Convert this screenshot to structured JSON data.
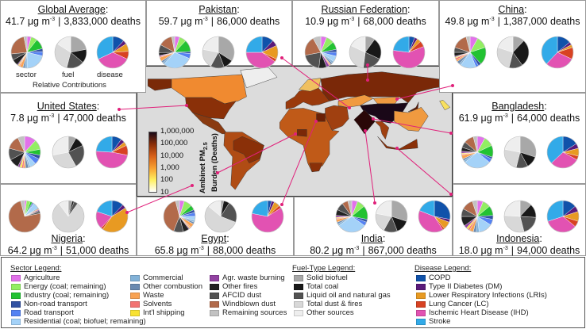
{
  "units": {
    "conc": "μg m",
    "exp": "-3",
    "sep": "|",
    "deaths": "deaths"
  },
  "global_labels": {
    "sector": "sector",
    "fuel": "fuel",
    "disease": "disease",
    "caption": "Relative Contributions"
  },
  "panels": [
    {
      "id": "global",
      "name": "Global Average",
      "conc": "41.7",
      "deaths": "3,833,000",
      "sector": [
        4,
        6,
        10,
        3,
        4,
        20,
        2,
        2,
        3,
        1,
        1,
        1,
        6,
        6,
        22,
        3
      ],
      "fuel": [
        22,
        14,
        18,
        30,
        16
      ],
      "disease": [
        12,
        4,
        8,
        8,
        36,
        32
      ]
    },
    {
      "id": "pakistan",
      "name": "Pakistan",
      "conc": "59.7",
      "deaths": "86,000",
      "sector": [
        5,
        7,
        12,
        2,
        5,
        30,
        2,
        2,
        4,
        1,
        0,
        1,
        3,
        8,
        14,
        3
      ],
      "fuel": [
        34,
        10,
        14,
        20,
        22
      ],
      "disease": [
        12,
        6,
        14,
        3,
        40,
        25
      ]
    },
    {
      "id": "russia",
      "name": "Russian Federation",
      "conc": "10.9",
      "deaths": "68,000",
      "sector": [
        6,
        8,
        8,
        3,
        4,
        6,
        2,
        2,
        1,
        1,
        0,
        3,
        8,
        20,
        20,
        8
      ],
      "fuel": [
        10,
        22,
        20,
        30,
        18
      ],
      "disease": [
        6,
        3,
        4,
        6,
        58,
        23
      ]
    },
    {
      "id": "china",
      "name": "China",
      "conc": "49.8",
      "deaths": "1,387,000",
      "sector": [
        8,
        12,
        18,
        3,
        3,
        16,
        2,
        3,
        2,
        2,
        1,
        1,
        4,
        5,
        16,
        4
      ],
      "fuel": [
        12,
        28,
        14,
        26,
        20
      ],
      "disease": [
        14,
        3,
        3,
        12,
        30,
        38
      ]
    },
    {
      "id": "us",
      "name": "United States",
      "conc": "7.8",
      "deaths": "47,000",
      "sector": [
        12,
        10,
        6,
        4,
        6,
        6,
        2,
        3,
        2,
        2,
        2,
        2,
        10,
        12,
        14,
        7
      ],
      "fuel": [
        8,
        10,
        24,
        30,
        28
      ],
      "disease": [
        10,
        4,
        4,
        10,
        48,
        24
      ]
    },
    {
      "id": "bangladesh",
      "name": "Bangladesh",
      "conc": "61.9",
      "deaths": "64,000",
      "sector": [
        8,
        10,
        12,
        2,
        4,
        28,
        2,
        2,
        4,
        1,
        1,
        2,
        4,
        6,
        10,
        4
      ],
      "fuel": [
        30,
        12,
        12,
        24,
        22
      ],
      "disease": [
        16,
        5,
        8,
        4,
        30,
        37
      ]
    },
    {
      "id": "nigeria",
      "name": "Nigeria",
      "conc": "64.2",
      "deaths": "51,000",
      "sector": [
        2,
        4,
        2,
        1,
        1,
        6,
        0,
        1,
        1,
        0,
        0,
        1,
        1,
        2,
        74,
        4
      ],
      "fuel": [
        4,
        2,
        4,
        80,
        10
      ],
      "disease": [
        12,
        4,
        44,
        2,
        18,
        20
      ]
    },
    {
      "id": "egypt",
      "name": "Egypt",
      "conc": "65.8",
      "deaths": "88,000",
      "sector": [
        5,
        8,
        5,
        3,
        4,
        4,
        2,
        2,
        4,
        1,
        1,
        1,
        6,
        10,
        40,
        4
      ],
      "fuel": [
        3,
        6,
        22,
        55,
        14
      ],
      "disease": [
        4,
        3,
        6,
        3,
        62,
        22
      ]
    },
    {
      "id": "india",
      "name": "India",
      "conc": "80.2",
      "deaths": "867,000",
      "sector": [
        6,
        8,
        14,
        3,
        4,
        30,
        2,
        2,
        3,
        1,
        1,
        2,
        6,
        8,
        6,
        4
      ],
      "fuel": [
        30,
        14,
        14,
        20,
        22
      ],
      "disease": [
        28,
        3,
        8,
        2,
        40,
        19
      ]
    },
    {
      "id": "indonesia",
      "name": "Indonesia",
      "conc": "18.0",
      "deaths": "94,000",
      "sector": [
        6,
        8,
        10,
        4,
        6,
        14,
        3,
        3,
        4,
        2,
        2,
        3,
        10,
        8,
        12,
        5
      ],
      "fuel": [
        12,
        14,
        20,
        30,
        24
      ],
      "disease": [
        14,
        6,
        10,
        6,
        34,
        30
      ]
    }
  ],
  "colorbar": {
    "ticks": [
      "1,000,000",
      "100,000",
      "10,000",
      "1,000",
      "100",
      "10"
    ],
    "title": "Ambinet PM",
    "sub": "2.5",
    "title2": "Burden (Deaths)",
    "colors": [
      "#ffffff",
      "#fff060",
      "#f8a030",
      "#d86018",
      "#8a2e08",
      "#1a0a18"
    ]
  },
  "legend": {
    "sector_title": "Sector Legend:",
    "sector": [
      {
        "label": "Agriculture",
        "color": "#e272ea"
      },
      {
        "label": "Energy (coal; remaining)",
        "color": "#92ee62"
      },
      {
        "label": "Industry (coal; remaining)",
        "color": "#22c232"
      },
      {
        "label": "Non-road transport",
        "color": "#3252a2"
      },
      {
        "label": "Road transport",
        "color": "#5482f2"
      },
      {
        "label": "Residential (coal; biofuel; remaining)",
        "color": "#a4d2f8"
      },
      {
        "label": "Commercial",
        "color": "#82b2d8"
      },
      {
        "label": "Other combustion",
        "color": "#6a8ab0"
      },
      {
        "label": "Waste",
        "color": "#f8a252"
      },
      {
        "label": "Solvents",
        "color": "#f27272"
      },
      {
        "label": "Int'l shipping",
        "color": "#f8e232"
      },
      {
        "label": "Agr. waste burning",
        "color": "#9242a2"
      },
      {
        "label": "Other fires",
        "color": "#222222"
      },
      {
        "label": "AFCID dust",
        "color": "#525252"
      },
      {
        "label": "Windblown dust",
        "color": "#b26a4a"
      },
      {
        "label": "Remaining sources",
        "color": "#c2c2c2"
      }
    ],
    "fuel_title": "Fuel-Type Legend:",
    "fuel": [
      {
        "label": "Solid biofuel",
        "color": "#a8a8a8"
      },
      {
        "label": "Total coal",
        "color": "#181818"
      },
      {
        "label": "Liquid oil and natural gas",
        "color": "#525252"
      },
      {
        "label": "Total dust & fires",
        "color": "#d8d8d8"
      },
      {
        "label": "Other sources",
        "color": "#eeeeee"
      }
    ],
    "disease_title": "Disease Legend:",
    "disease": [
      {
        "label": "COPD",
        "color": "#1052aa"
      },
      {
        "label": "Type II Diabetes (DM)",
        "color": "#5a1a7a"
      },
      {
        "label": "Lower Respiratory Infections (LRIs)",
        "color": "#e89a22"
      },
      {
        "label": "Lung Cancer (LC)",
        "color": "#d84222"
      },
      {
        "label": "Ischemic Heart Disease (IHD)",
        "color": "#e252b2"
      },
      {
        "label": "Stroke",
        "color": "#32aae8"
      }
    ]
  },
  "accent": "#e0207a"
}
